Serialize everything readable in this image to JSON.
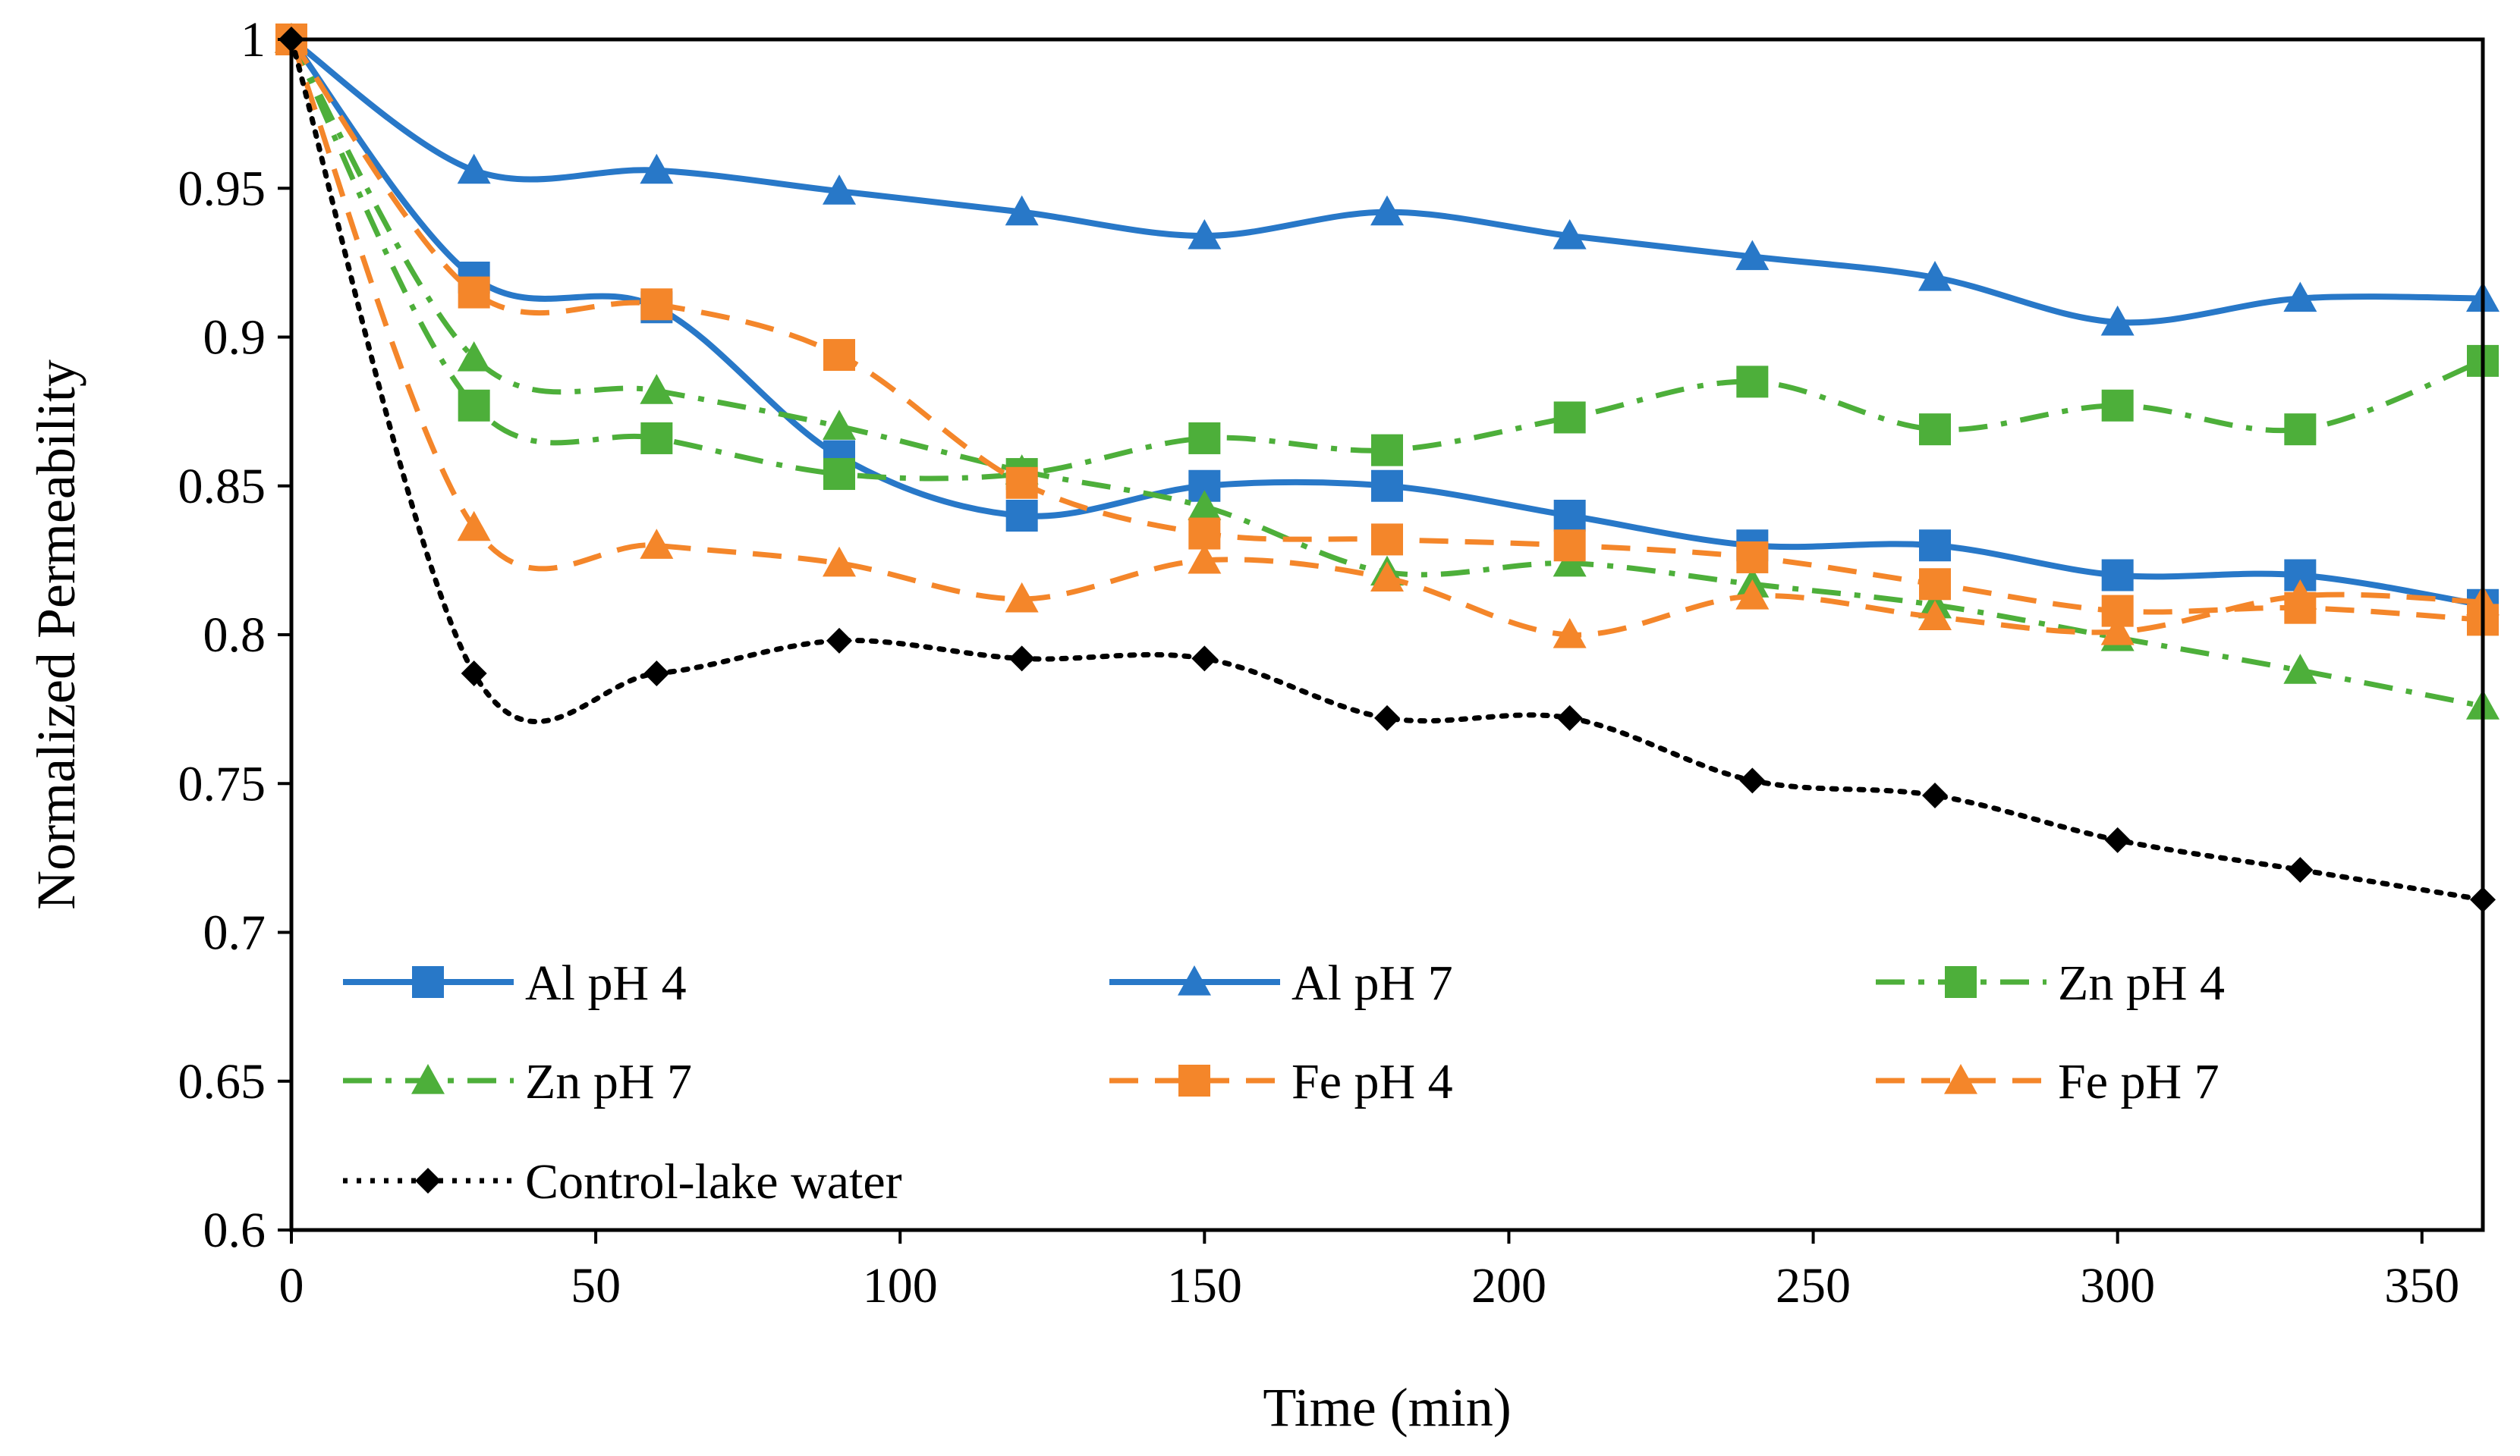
{
  "chart_data": {
    "type": "line",
    "title": "",
    "xlabel": "Time (min)",
    "ylabel": "Normalized Permeability",
    "xlim": [
      0,
      360
    ],
    "ylim": [
      0.6,
      1.0
    ],
    "xticks": [
      0,
      50,
      100,
      150,
      200,
      250,
      300,
      350
    ],
    "yticks": [
      0.6,
      0.65,
      0.7,
      0.75,
      0.8,
      0.85,
      0.9,
      0.95,
      1.0
    ],
    "xtick_labels": [
      "0",
      "50",
      "100",
      "150",
      "200",
      "250",
      "300",
      "350"
    ],
    "ytick_labels": [
      "0.6",
      "0.65",
      "0.7",
      "0.75",
      "0.8",
      "0.85",
      "0.9",
      "0.95",
      "1"
    ],
    "grid": false,
    "legend_position": "inside-bottom",
    "x": [
      0,
      30,
      60,
      90,
      120,
      150,
      180,
      210,
      240,
      270,
      300,
      330,
      360
    ],
    "series": [
      {
        "name": "Al pH 4",
        "color": "#2878C8",
        "dash": "solid",
        "marker": "square",
        "values": [
          1.0,
          0.92,
          0.91,
          0.86,
          0.84,
          0.85,
          0.85,
          0.84,
          0.83,
          0.83,
          0.82,
          0.82,
          0.81
        ]
      },
      {
        "name": "Al pH 7",
        "color": "#2878C8",
        "dash": "solid",
        "marker": "triangle",
        "values": [
          1.0,
          0.956,
          0.956,
          0.949,
          0.942,
          0.934,
          0.942,
          0.934,
          0.927,
          0.92,
          0.905,
          0.913,
          0.913
        ]
      },
      {
        "name": "Zn pH 4",
        "color": "#4DAF3A",
        "dash": "dashdot",
        "marker": "square",
        "values": [
          1.0,
          0.877,
          0.866,
          0.854,
          0.854,
          0.866,
          0.862,
          0.873,
          0.885,
          0.869,
          0.877,
          0.869,
          0.892
        ]
      },
      {
        "name": "Zn pH 7",
        "color": "#4DAF3A",
        "dash": "dashdot",
        "marker": "triangle",
        "values": [
          1.0,
          0.893,
          0.882,
          0.87,
          0.855,
          0.843,
          0.821,
          0.824,
          0.817,
          0.81,
          0.799,
          0.788,
          0.776
        ]
      },
      {
        "name": "Fe pH 4",
        "color": "#F4862A",
        "dash": "dash",
        "marker": "square",
        "values": [
          1.0,
          0.915,
          0.911,
          0.894,
          0.851,
          0.834,
          0.832,
          0.83,
          0.826,
          0.817,
          0.808,
          0.809,
          0.805
        ]
      },
      {
        "name": "Fe pH 7",
        "color": "#F4862A",
        "dash": "dash",
        "marker": "triangle",
        "values": [
          1.0,
          0.836,
          0.83,
          0.824,
          0.812,
          0.825,
          0.819,
          0.8,
          0.813,
          0.806,
          0.801,
          0.813,
          0.811
        ]
      },
      {
        "name": "Control-lake water",
        "color": "#000000",
        "dash": "dot",
        "marker": "diamond",
        "values": [
          1.0,
          0.787,
          0.787,
          0.798,
          0.792,
          0.792,
          0.772,
          0.772,
          0.751,
          0.746,
          0.731,
          0.721,
          0.711
        ]
      }
    ]
  }
}
